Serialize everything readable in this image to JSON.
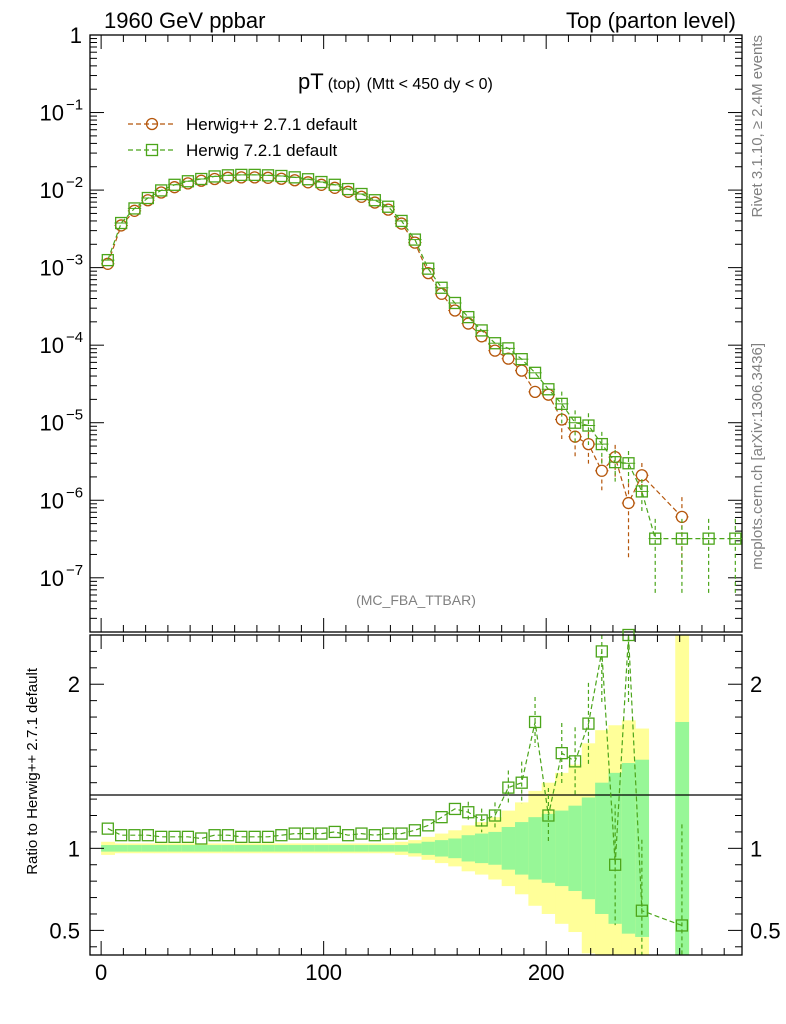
{
  "header": {
    "left": "1960 GeV ppbar",
    "right": "Top (parton level)"
  },
  "title": {
    "main": "pT",
    "sub": "(top)",
    "cut": "(Mtt < 450 dy < 0)"
  },
  "side_labels": {
    "rivet": "Rivet 3.1.10, ≥ 2.4M events",
    "mcplots": "mcplots.cern.ch [arXiv:1306.3436]"
  },
  "analysis_tag": "(MC_FBA_TTBAR)",
  "ratio_ylabel": "Ratio to Herwig++ 2.7.1 default",
  "colors": {
    "herwigpp": "#b5560b",
    "herwig7": "#4ba51a",
    "band_inner": "#97f797",
    "band_outer": "#ffff99"
  },
  "chart_data": {
    "type": "line",
    "xlabel": "",
    "ylabel": "",
    "xlim": [
      -5,
      288
    ],
    "main_ylim": [
      2e-08,
      1
    ],
    "ratio_ylim": [
      0.35,
      2.3
    ],
    "yscale": "log",
    "xticks": [
      "0",
      "100",
      "200"
    ],
    "main_yticks": [
      "1",
      "10",
      "10",
      "10",
      "10",
      "10",
      "10",
      "10"
    ],
    "main_ytick_exponents": [
      "",
      "−1",
      "−2",
      "−3",
      "−4",
      "−5",
      "−6",
      "−7"
    ],
    "ratio_yticks": [
      "0.5",
      "1",
      "2"
    ],
    "legend": [
      "Herwig++ 2.7.1 default",
      "Herwig 7.2.1 default"
    ],
    "x": [
      3,
      9,
      15,
      21,
      27,
      33,
      39,
      45,
      51,
      57,
      63,
      69,
      75,
      81,
      87,
      93,
      99,
      105,
      111,
      117,
      123,
      129,
      135,
      141,
      147,
      153,
      159,
      165,
      171,
      177,
      183,
      189,
      195,
      201,
      207,
      213,
      219,
      225,
      231,
      237,
      243,
      249,
      261,
      273,
      285
    ],
    "series": [
      {
        "name": "Herwig++ 2.7.1 default",
        "marker": "circle",
        "values": [
          0.00112,
          0.0035,
          0.0054,
          0.0074,
          0.0093,
          0.0109,
          0.0122,
          0.0132,
          0.0139,
          0.0144,
          0.0146,
          0.0146,
          0.0144,
          0.014,
          0.0134,
          0.0126,
          0.0117,
          0.0107,
          0.0095,
          0.0082,
          0.0069,
          0.0056,
          0.0037,
          0.0021,
          0.00085,
          0.00046,
          0.00028,
          0.00019,
          0.00013,
          8.5e-05,
          6.7e-05,
          4.7e-05,
          2.5e-05,
          2.3e-05,
          1.1e-05,
          6.6e-06,
          5.3e-06,
          2.4e-06,
          3.6e-06,
          9.2e-07,
          2.1e-06,
          null,
          6.1e-07,
          null,
          null
        ]
      },
      {
        "name": "Herwig 7.2.1 default",
        "marker": "square",
        "values": [
          0.00125,
          0.00376,
          0.0058,
          0.0079,
          0.0099,
          0.0117,
          0.013,
          0.0139,
          0.015,
          0.0155,
          0.0157,
          0.0157,
          0.0155,
          0.0152,
          0.0146,
          0.0138,
          0.0127,
          0.0117,
          0.0103,
          0.0089,
          0.0074,
          0.0061,
          0.004,
          0.0023,
          0.00097,
          0.00055,
          0.00035,
          0.00023,
          0.000155,
          0.000106,
          9.1e-05,
          6.6e-05,
          4.4e-05,
          2.7e-05,
          1.75e-05,
          1e-05,
          9.2e-06,
          5.3e-06,
          3.1e-06,
          3e-06,
          1.3e-06,
          3.2e-07,
          3.2e-07,
          3.2e-07,
          3.2e-07
        ]
      }
    ],
    "ratio": [
      1.12,
      1.08,
      1.08,
      1.08,
      1.07,
      1.07,
      1.07,
      1.06,
      1.08,
      1.08,
      1.07,
      1.07,
      1.07,
      1.08,
      1.09,
      1.09,
      1.09,
      1.1,
      1.08,
      1.09,
      1.08,
      1.09,
      1.09,
      1.11,
      1.14,
      1.19,
      1.24,
      1.22,
      1.17,
      1.2,
      1.37,
      1.4,
      1.77,
      1.2,
      1.58,
      1.53,
      1.76,
      2.2,
      0.9,
      2.3,
      0.62,
      null,
      0.53,
      null,
      null
    ],
    "band_inner": [
      0.02,
      0.02,
      0.02,
      0.02,
      0.02,
      0.02,
      0.02,
      0.02,
      0.02,
      0.02,
      0.02,
      0.02,
      0.02,
      0.02,
      0.02,
      0.02,
      0.02,
      0.02,
      0.02,
      0.02,
      0.02,
      0.02,
      0.02,
      0.03,
      0.04,
      0.05,
      0.06,
      0.08,
      0.09,
      0.1,
      0.13,
      0.16,
      0.19,
      0.21,
      0.23,
      0.26,
      0.31,
      0.4,
      0.46,
      0.52,
      0.54,
      null,
      0.77,
      null,
      null
    ],
    "band_outer": [
      0.04,
      0.03,
      0.03,
      0.03,
      0.03,
      0.03,
      0.03,
      0.03,
      0.03,
      0.03,
      0.03,
      0.03,
      0.03,
      0.03,
      0.03,
      0.03,
      0.03,
      0.03,
      0.03,
      0.03,
      0.03,
      0.03,
      0.04,
      0.05,
      0.07,
      0.09,
      0.11,
      0.14,
      0.16,
      0.19,
      0.23,
      0.28,
      0.35,
      0.4,
      0.46,
      0.51,
      0.64,
      0.72,
      0.75,
      0.78,
      0.73,
      null,
      1.5,
      null,
      null
    ]
  }
}
